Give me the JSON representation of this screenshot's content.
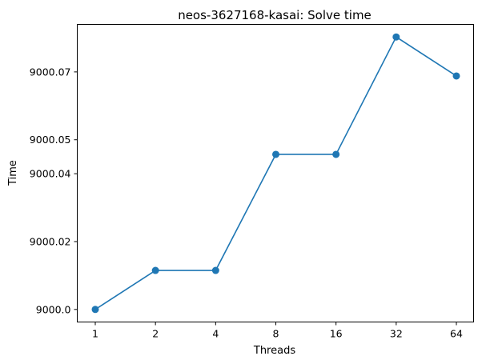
{
  "chart_data": {
    "type": "line",
    "title": "neos-3627168-kasai: Solve time",
    "xlabel": "Threads",
    "ylabel": "Time",
    "categories": [
      "1",
      "2",
      "4",
      "8",
      "16",
      "32",
      "64"
    ],
    "series": [
      {
        "values": [
          9000.0,
          9000.0115,
          9000.0115,
          9000.0457,
          9000.0457,
          9000.0803,
          9000.0688
        ],
        "color": "#1f77b4"
      }
    ],
    "yticks": [
      9000.0,
      9000.02,
      9000.04,
      9000.05,
      9000.07
    ],
    "ytick_labels": [
      "9000.0",
      "9000.02",
      "9000.04",
      "9000.05",
      "9000.07"
    ],
    "ylim": [
      8999.9963,
      9000.084
    ],
    "grid": false,
    "marker": "circle"
  }
}
